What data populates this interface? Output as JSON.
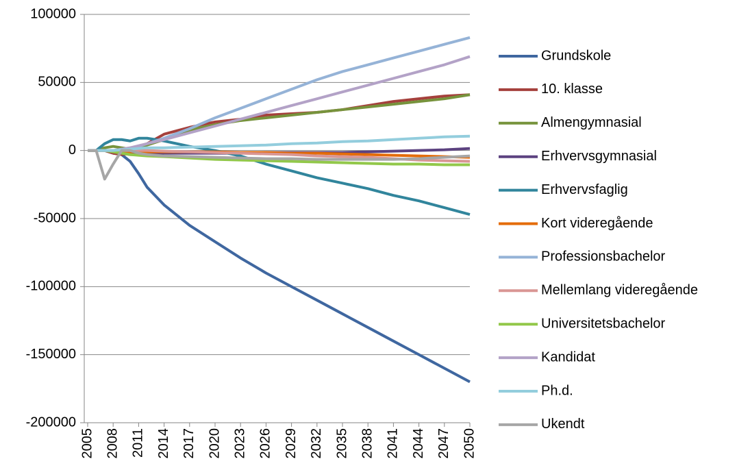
{
  "chart_data": {
    "type": "line",
    "x": [
      2005,
      2006,
      2007,
      2008,
      2009,
      2010,
      2011,
      2012,
      2014,
      2017,
      2020,
      2023,
      2026,
      2029,
      2032,
      2035,
      2038,
      2041,
      2044,
      2047,
      2050
    ],
    "xlim": [
      2005,
      2050
    ],
    "xticks": [
      2005,
      2008,
      2011,
      2014,
      2017,
      2020,
      2023,
      2026,
      2029,
      2032,
      2035,
      2038,
      2041,
      2044,
      2047,
      2050
    ],
    "ylim": [
      -200000,
      100000
    ],
    "yticks": [
      -200000,
      -150000,
      -100000,
      -50000,
      0,
      50000,
      100000
    ],
    "grid": true,
    "legend": "right",
    "series": [
      {
        "name": "Grundskole",
        "color": "#3F67A0",
        "values": [
          0,
          0,
          0,
          -2000,
          -3000,
          -8000,
          -17000,
          -27000,
          -40000,
          -55000,
          -67000,
          -79000,
          -90000,
          -100000,
          -110000,
          -120000,
          -130000,
          -140000,
          -150000,
          -160000,
          -170000
        ]
      },
      {
        "name": "10. klasse",
        "color": "#A5403C",
        "values": [
          0,
          0,
          0,
          -2000,
          -3000,
          -2000,
          0,
          5000,
          12000,
          17000,
          21000,
          23000,
          26000,
          27000,
          28000,
          30000,
          33000,
          36000,
          38000,
          40000,
          41000
        ]
      },
      {
        "name": "Almengymnasial",
        "color": "#77933C",
        "values": [
          0,
          0,
          2000,
          3000,
          2000,
          1000,
          2000,
          4000,
          8000,
          15000,
          19000,
          22000,
          24000,
          26000,
          28000,
          30000,
          32000,
          34000,
          36000,
          38000,
          41000
        ]
      },
      {
        "name": "Erhvervsgymnasial",
        "color": "#5C4280",
        "values": [
          0,
          0,
          0,
          -1000,
          -2000,
          -3000,
          -3000,
          -3000,
          -2000,
          -2000,
          -2000,
          -2000,
          -1500,
          -1500,
          -1500,
          -1500,
          -1000,
          -500,
          0,
          500,
          1500
        ]
      },
      {
        "name": "Erhvervsfaglig",
        "color": "#31859C",
        "values": [
          0,
          0,
          5000,
          8000,
          8000,
          7000,
          9000,
          9000,
          7000,
          3000,
          0,
          -4000,
          -10000,
          -15000,
          -20000,
          -24000,
          -28000,
          -33000,
          -37000,
          -42000,
          -47000
        ]
      },
      {
        "name": "Kort videregående",
        "color": "#E46C0A",
        "values": [
          0,
          0,
          0,
          0,
          -1000,
          -1000,
          -1000,
          -1000,
          -1000,
          -1000,
          -1000,
          -1500,
          -1500,
          -2000,
          -2000,
          -2500,
          -3000,
          -3500,
          -4000,
          -4500,
          -5000
        ]
      },
      {
        "name": "Professionsbachelor",
        "color": "#95B3D7",
        "values": [
          0,
          0,
          0,
          0,
          1000,
          2000,
          3000,
          5000,
          9000,
          16000,
          24000,
          31000,
          38000,
          45000,
          52000,
          58000,
          63000,
          68000,
          73000,
          78000,
          83000
        ]
      },
      {
        "name": "Mellemlang videregående",
        "color": "#D99694",
        "values": [
          0,
          0,
          0,
          0,
          0,
          0,
          0,
          0,
          -500,
          -1000,
          -1500,
          -2000,
          -2500,
          -3000,
          -4000,
          -4500,
          -5000,
          -6000,
          -7000,
          -7500,
          -8000
        ]
      },
      {
        "name": "Universitetsbachelor",
        "color": "#92C84A",
        "values": [
          0,
          0,
          0,
          -1000,
          -2000,
          -3000,
          -3500,
          -4000,
          -4500,
          -5500,
          -6500,
          -7000,
          -7500,
          -8000,
          -8500,
          -9000,
          -9500,
          -10000,
          -10000,
          -10500,
          -10500
        ]
      },
      {
        "name": "Kandidat",
        "color": "#B3A2C7",
        "values": [
          0,
          0,
          0,
          0,
          1000,
          2000,
          3500,
          5000,
          8000,
          13000,
          18000,
          23000,
          28000,
          33000,
          38000,
          43000,
          48000,
          53000,
          58000,
          63000,
          69000
        ]
      },
      {
        "name": "Ph.d.",
        "color": "#93CDDD",
        "values": [
          0,
          0,
          0,
          0,
          500,
          1000,
          1500,
          2000,
          2000,
          2500,
          3000,
          3500,
          4000,
          5000,
          5500,
          6500,
          7000,
          8000,
          9000,
          10000,
          10500
        ]
      },
      {
        "name": "Ukendt",
        "color": "#A6A6A6",
        "values": [
          0,
          0,
          -21000,
          -10000,
          0,
          0,
          -2000,
          -3000,
          -4000,
          -4500,
          -5000,
          -5500,
          -6000,
          -6000,
          -6500,
          -6500,
          -6500,
          -6500,
          -6000,
          -5000,
          -4000
        ]
      }
    ]
  }
}
